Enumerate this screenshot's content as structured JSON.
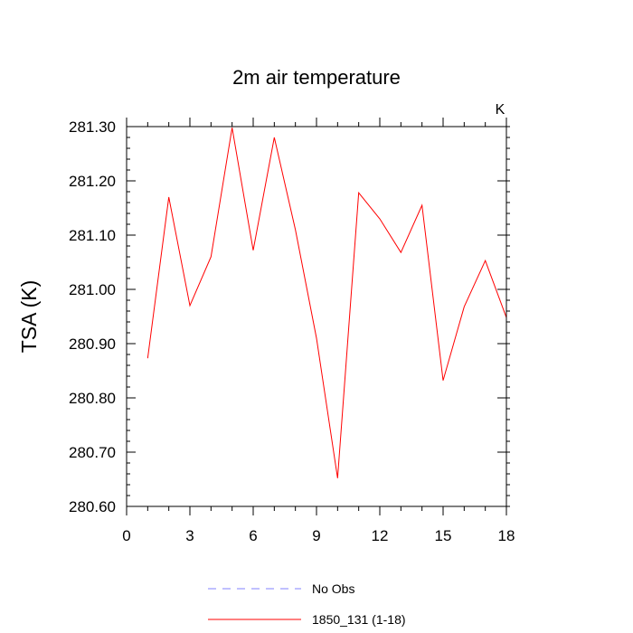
{
  "chart_data": {
    "type": "line",
    "title": "2m air temperature",
    "units_label": "K",
    "ylabel": "TSA  (K)",
    "xlabel": "",
    "xlim": [
      0,
      18
    ],
    "ylim": [
      280.6,
      281.3
    ],
    "x_ticks": [
      0,
      3,
      6,
      9,
      12,
      15,
      18
    ],
    "y_ticks": [
      "280.60",
      "280.70",
      "280.80",
      "280.90",
      "281.00",
      "281.10",
      "281.20",
      "281.30"
    ],
    "grid": false,
    "legend_position": "bottom",
    "series": [
      {
        "name": "1850_131 (1-18)",
        "color": "#ff0000",
        "dash": "solid",
        "x": [
          1,
          2,
          3,
          4,
          5,
          6,
          7,
          8,
          9,
          10,
          11,
          12,
          13,
          14,
          15,
          16,
          17,
          18
        ],
        "values": [
          280.873,
          281.17,
          280.97,
          281.06,
          281.298,
          281.072,
          281.28,
          281.11,
          280.91,
          280.652,
          281.178,
          281.13,
          281.068,
          281.155,
          280.832,
          280.968,
          281.053,
          280.948
        ]
      }
    ],
    "legend": [
      {
        "label": "No Obs",
        "color": "#8080ff",
        "dash": "dashed"
      },
      {
        "label": "1850_131 (1-18)",
        "color": "#ff0000",
        "dash": "solid"
      }
    ]
  }
}
